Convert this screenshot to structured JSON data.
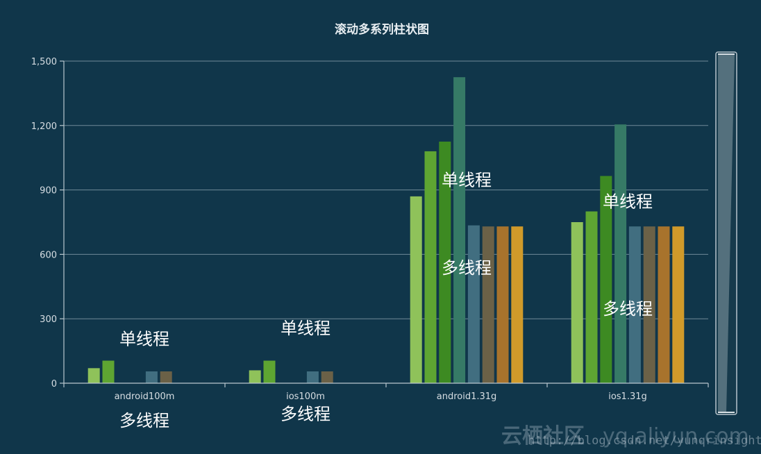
{
  "chart_data": {
    "type": "bar",
    "title": "滚动多系列柱状图",
    "categories": [
      "android100m",
      "ios100m",
      "android1.31g",
      "ios1.31g"
    ],
    "ylim": [
      0,
      1500
    ],
    "yticks": [
      0,
      300,
      600,
      900,
      1200,
      1500
    ],
    "ytick_labels": [
      "0",
      "300",
      "600",
      "900",
      "1,200",
      "1,500"
    ],
    "grid": true,
    "series": [
      {
        "values": [
          70,
          60,
          870,
          750
        ],
        "color": "#8fc25a"
      },
      {
        "values": [
          105,
          105,
          1080,
          800
        ],
        "color": "#5ea532"
      },
      {
        "values": [
          0,
          0,
          1125,
          965
        ],
        "color": "#3d8a22"
      },
      {
        "values": [
          0,
          0,
          1425,
          1205
        ],
        "color": "#367a66"
      },
      {
        "values": [
          55,
          55,
          735,
          730
        ],
        "color": "#416e80"
      },
      {
        "values": [
          55,
          55,
          730,
          730
        ],
        "color": "#6b6147"
      },
      {
        "values": [
          0,
          0,
          730,
          730
        ],
        "color": "#a8732c"
      },
      {
        "values": [
          0,
          0,
          730,
          730
        ],
        "color": "#d09a2a"
      }
    ],
    "annotations": [
      {
        "text": "单线程",
        "category": 0,
        "y": 180
      },
      {
        "text": "多线程",
        "category": 0,
        "y": -200
      },
      {
        "text": "单线程",
        "category": 1,
        "y": 230
      },
      {
        "text": "多线程",
        "category": 1,
        "y": -170
      },
      {
        "text": "单线程",
        "category": 2,
        "y": 920
      },
      {
        "text": "多线程",
        "category": 2,
        "y": 510
      },
      {
        "text": "单线程",
        "category": 3,
        "y": 820
      },
      {
        "text": "多线程",
        "category": 3,
        "y": 320
      }
    ]
  },
  "watermark": {
    "logo": "云栖社区",
    "site": "yq.aliyun.com",
    "url": "http://blog.csdn.net/yunqrinsight"
  },
  "scrollbar": {
    "position": 0
  }
}
